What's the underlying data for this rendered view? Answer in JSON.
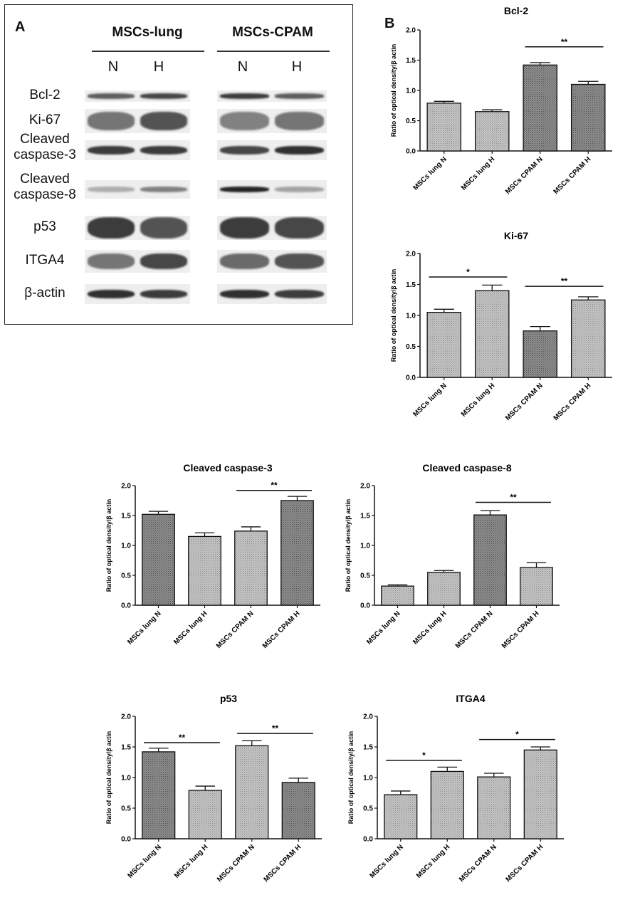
{
  "panel_a": {
    "letter": "A",
    "groups": [
      {
        "label": "MSCs-lung",
        "lanes": [
          "N",
          "H"
        ]
      },
      {
        "label": "MSCs-CPAM",
        "lanes": [
          "N",
          "H"
        ]
      }
    ],
    "rows": [
      {
        "label": "Bcl-2",
        "intensity": [
          0.7,
          0.8,
          0.85,
          0.7
        ],
        "thickness": 0.45
      },
      {
        "label": "Ki-67",
        "intensity": [
          0.6,
          0.75,
          0.55,
          0.6
        ],
        "thickness": 0.75
      },
      {
        "label": "Cleaved caspase-3",
        "intensity": [
          0.85,
          0.85,
          0.8,
          0.9
        ],
        "thickness": 0.45
      },
      {
        "label": "Cleaved caspase-8",
        "intensity": [
          0.35,
          0.55,
          0.95,
          0.4
        ],
        "thickness": 0.3
      },
      {
        "label": "p53",
        "intensity": [
          0.85,
          0.75,
          0.85,
          0.8
        ],
        "thickness": 0.9
      },
      {
        "label": "ITGA4",
        "intensity": [
          0.6,
          0.8,
          0.65,
          0.75
        ],
        "thickness": 0.7
      },
      {
        "label": "β-actin",
        "intensity": [
          0.9,
          0.85,
          0.9,
          0.85
        ],
        "thickness": 0.45
      }
    ]
  },
  "panel_b": {
    "letter": "B"
  },
  "chart_data": [
    {
      "type": "bar",
      "title": "Bcl-2",
      "ylabel": "Ratio of optical density/β actin",
      "categories": [
        "MSCs lung N",
        "MSCs lung H",
        "MSCs CPAM N",
        "MSCs CPAM H"
      ],
      "values": [
        0.79,
        0.65,
        1.42,
        1.1
      ],
      "errors": [
        0.03,
        0.03,
        0.04,
        0.05
      ],
      "ylim": [
        0,
        2.0
      ],
      "yticks": [
        "0.0",
        "0.5",
        "1.0",
        "1.5",
        "2.0"
      ],
      "significance": [
        {
          "from": 2,
          "to": 3,
          "label": "**",
          "y": 1.72
        }
      ]
    },
    {
      "type": "bar",
      "title": "Ki-67",
      "ylabel": "Ratio of optical density/β actin",
      "categories": [
        "MSCs lung N",
        "MSCs lung H",
        "MSCs CPAM N",
        "MSCs CPAM H"
      ],
      "values": [
        1.05,
        1.4,
        0.75,
        1.25
      ],
      "errors": [
        0.05,
        0.09,
        0.07,
        0.05
      ],
      "ylim": [
        0,
        2.0
      ],
      "yticks": [
        "0.0",
        "0.5",
        "1.0",
        "1.5",
        "2.0"
      ],
      "significance": [
        {
          "from": 0,
          "to": 1,
          "label": "*",
          "y": 1.62
        },
        {
          "from": 2,
          "to": 3,
          "label": "**",
          "y": 1.47
        }
      ]
    },
    {
      "type": "bar",
      "title": "Cleaved caspase-3",
      "ylabel": "Ratio of optical density/β actin",
      "categories": [
        "MSCs lung N",
        "MSCs lung H",
        "MSCs CPAM N",
        "MSCs CPAM H"
      ],
      "values": [
        1.52,
        1.15,
        1.24,
        1.75
      ],
      "errors": [
        0.05,
        0.06,
        0.07,
        0.07
      ],
      "ylim": [
        0,
        2.0
      ],
      "yticks": [
        "0.0",
        "0.5",
        "1.0",
        "1.5",
        "2.0"
      ],
      "significance": [
        {
          "from": 2,
          "to": 3,
          "label": "**",
          "y": 1.92
        }
      ]
    },
    {
      "type": "bar",
      "title": "Cleaved caspase-8",
      "ylabel": "Ratio of optical density/β actin",
      "categories": [
        "MSCs lung N",
        "MSCs lung H",
        "MSCs CPAM N",
        "MSCs CPAM H"
      ],
      "values": [
        0.32,
        0.55,
        1.51,
        0.63
      ],
      "errors": [
        0.02,
        0.03,
        0.07,
        0.08
      ],
      "ylim": [
        0,
        2.0
      ],
      "yticks": [
        "0.0",
        "0.5",
        "1.0",
        "1.5",
        "2.0"
      ],
      "significance": [
        {
          "from": 2,
          "to": 3,
          "label": "**",
          "y": 1.72
        }
      ]
    },
    {
      "type": "bar",
      "title": "p53",
      "ylabel": "Ratio of optical density/β actin",
      "categories": [
        "MSCs lung N",
        "MSCs lung H",
        "MSCs CPAM N",
        "MSCs CPAM H"
      ],
      "values": [
        1.42,
        0.79,
        1.52,
        0.92
      ],
      "errors": [
        0.06,
        0.07,
        0.08,
        0.07
      ],
      "ylim": [
        0,
        2.0
      ],
      "yticks": [
        "0.0",
        "0.5",
        "1.0",
        "1.5",
        "2.0"
      ],
      "significance": [
        {
          "from": 0,
          "to": 1,
          "label": "**",
          "y": 1.57
        },
        {
          "from": 2,
          "to": 3,
          "label": "**",
          "y": 1.72
        }
      ]
    },
    {
      "type": "bar",
      "title": "ITGA4",
      "ylabel": "Ratio of optical density/β actin",
      "categories": [
        "MSCs lung N",
        "MSCs lung H",
        "MSCs CPAM N",
        "MSCs CPAM H"
      ],
      "values": [
        0.72,
        1.1,
        1.01,
        1.45
      ],
      "errors": [
        0.06,
        0.07,
        0.06,
        0.05
      ],
      "ylim": [
        0,
        2.0
      ],
      "yticks": [
        "0.0",
        "0.5",
        "1.0",
        "1.5",
        "2.0"
      ],
      "significance": [
        {
          "from": 0,
          "to": 1,
          "label": "*",
          "y": 1.28
        },
        {
          "from": 2,
          "to": 3,
          "label": "*",
          "y": 1.62
        }
      ]
    }
  ],
  "colors": {
    "bar_light": "#b8b8b8",
    "bar_dark": "#7d7d7d",
    "ink": "#111111"
  }
}
